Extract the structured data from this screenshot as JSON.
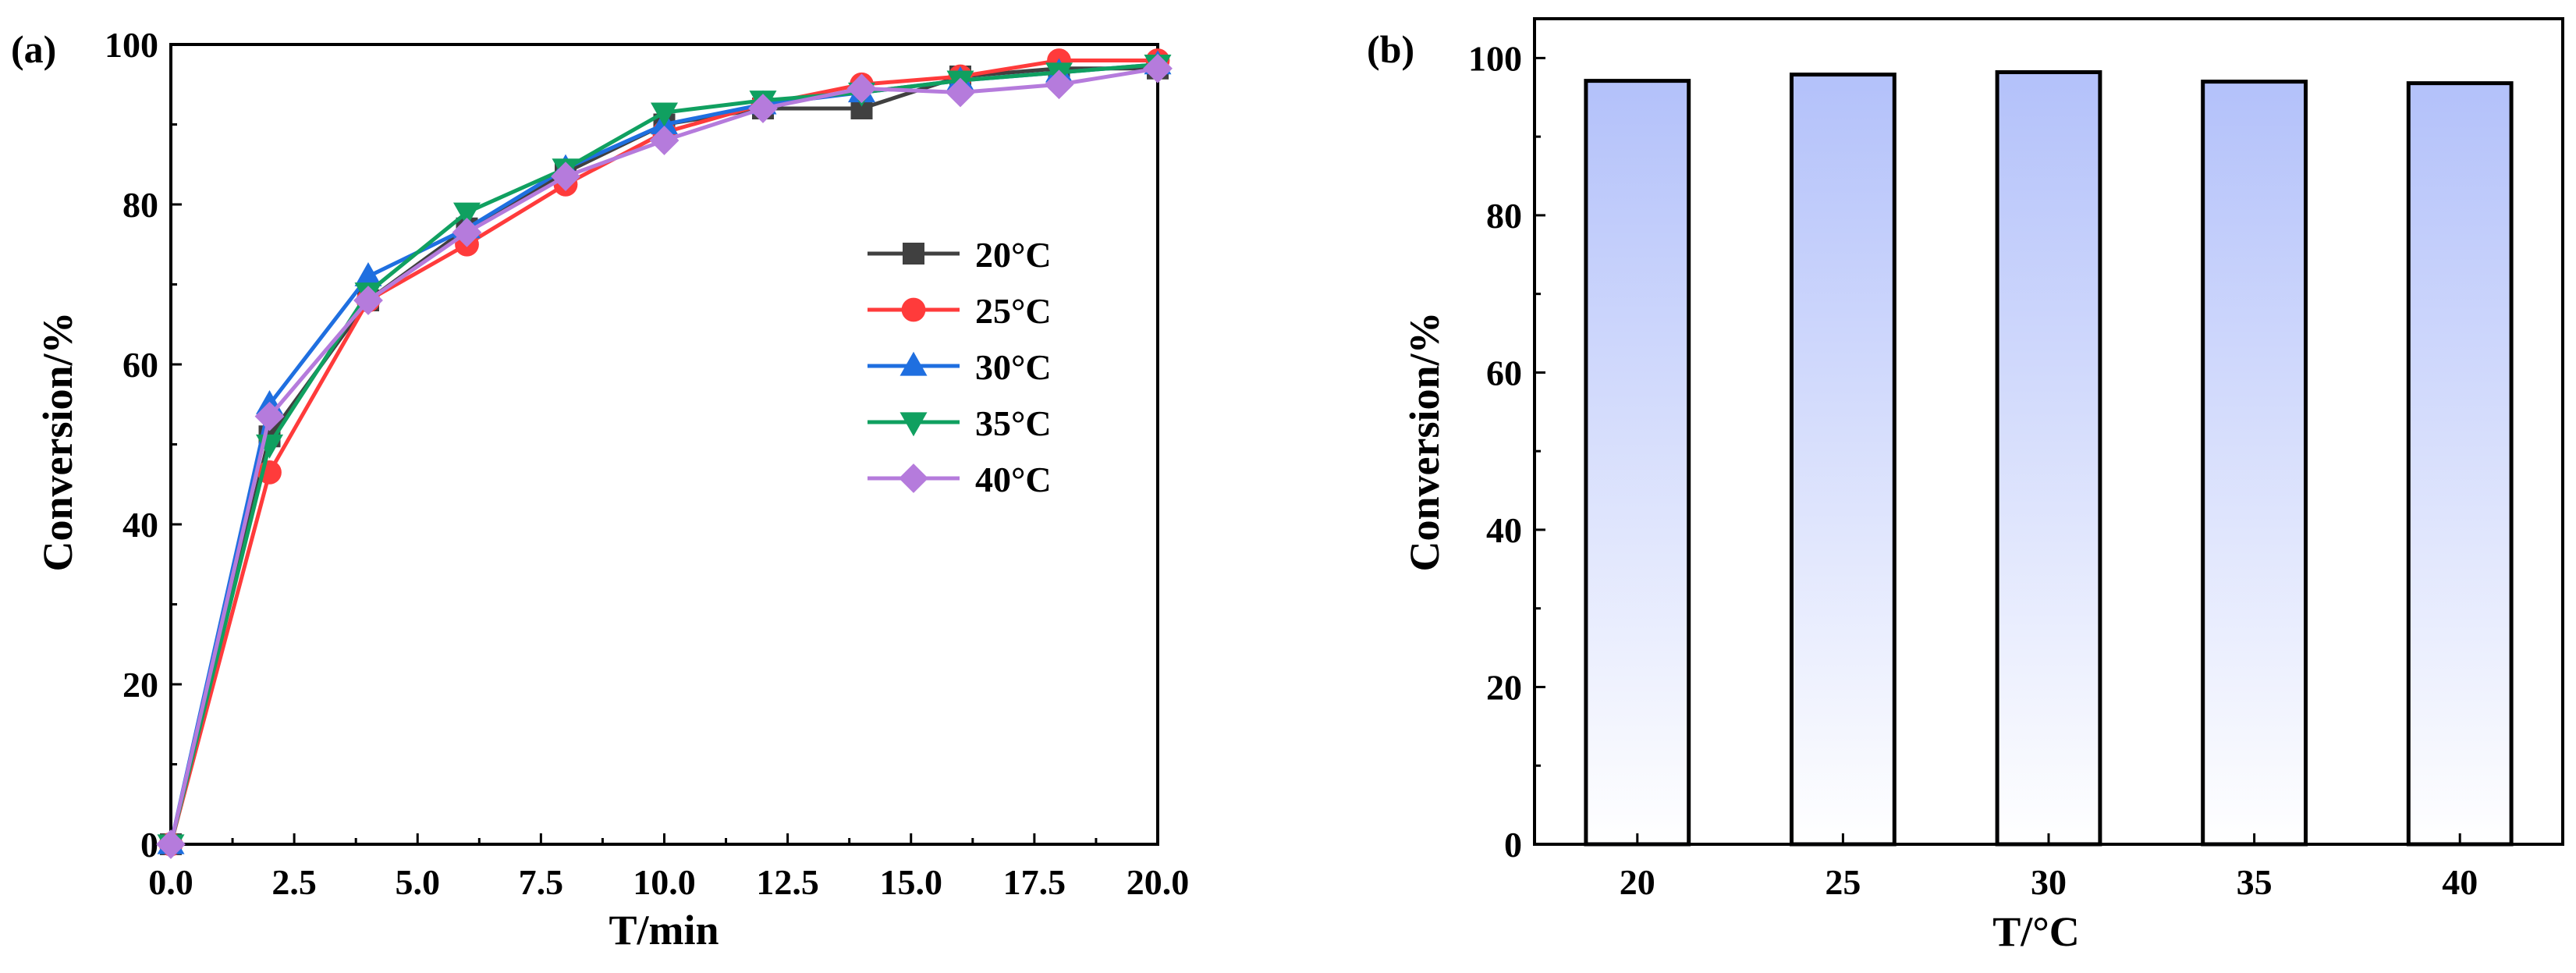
{
  "chart_data": [
    {
      "panel_label": "(a)",
      "type": "line",
      "xlabel": "T/min",
      "ylabel": "Conversion/%",
      "xlim": [
        0,
        20
      ],
      "ylim": [
        0,
        100
      ],
      "xticks": [
        0,
        2.5,
        5,
        7.5,
        10,
        12.5,
        15,
        17.5,
        20
      ],
      "xtick_labels": [
        "0.0",
        "2.5",
        "5.0",
        "7.5",
        "10.0",
        "12.5",
        "15.0",
        "17.5",
        "20.0"
      ],
      "yticks": [
        0,
        20,
        40,
        60,
        80,
        100
      ],
      "ytick_labels": [
        "0",
        "20",
        "40",
        "60",
        "80",
        "100"
      ],
      "x": [
        0,
        2,
        4,
        6,
        8,
        10,
        12,
        14,
        16,
        18,
        20
      ],
      "legend_position": "center-right",
      "series": [
        {
          "name": "20°C",
          "color": "#404040",
          "marker": "square",
          "values": [
            0,
            51,
            68,
            77,
            84,
            90,
            92,
            92,
            96,
            97,
            97
          ]
        },
        {
          "name": "25°C",
          "color": "#ff3b3b",
          "marker": "circle",
          "values": [
            0,
            46.5,
            68,
            75,
            82.5,
            89,
            92.5,
            95,
            96,
            98,
            98
          ]
        },
        {
          "name": "30°C",
          "color": "#1f6fe0",
          "marker": "triangle-up",
          "values": [
            0,
            55,
            71,
            77,
            84.5,
            90,
            92.5,
            94,
            95.5,
            96.5,
            97.5
          ]
        },
        {
          "name": "35°C",
          "color": "#10a060",
          "marker": "triangle-down",
          "values": [
            0,
            50,
            69,
            79,
            84.5,
            91.5,
            93,
            94,
            95.5,
            96.5,
            97.5
          ]
        },
        {
          "name": "40°C",
          "color": "#b57bdc",
          "marker": "diamond",
          "values": [
            0,
            53.5,
            68,
            76.5,
            83.5,
            88,
            92,
            94.5,
            94,
            95,
            97
          ]
        }
      ]
    },
    {
      "panel_label": "(b)",
      "type": "bar",
      "xlabel": "T/°C",
      "ylabel": "Conversion/%",
      "ylim": [
        0,
        105
      ],
      "yticks": [
        0,
        20,
        40,
        60,
        80,
        100
      ],
      "ytick_labels": [
        "0",
        "20",
        "40",
        "60",
        "80",
        "100"
      ],
      "categories": [
        "20",
        "25",
        "30",
        "35",
        "40"
      ],
      "values": [
        97.1,
        97.9,
        98.2,
        97.0,
        96.8
      ],
      "bar_color_top": "#b3c1fa",
      "bar_color_bottom": "#ffffff"
    }
  ]
}
